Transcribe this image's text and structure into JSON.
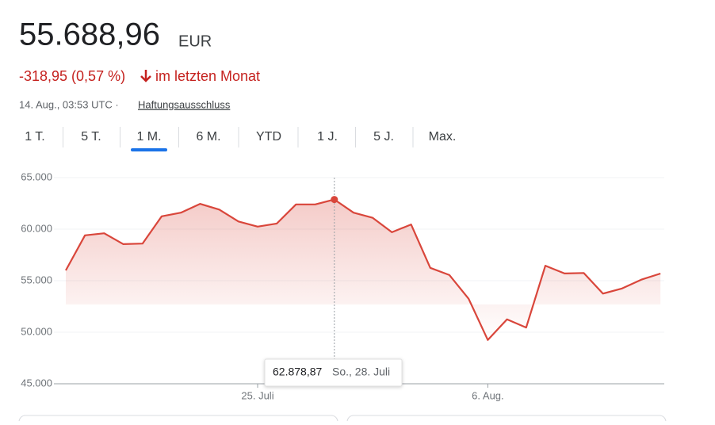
{
  "header": {
    "price": "55.688,96",
    "currency": "EUR",
    "change": "-318,95 (0,57 %)",
    "period": "im letzten Monat",
    "timestamp": "14. Aug., 03:53 UTC ·",
    "disclaimer": "Haftungsausschluss"
  },
  "tabs": [
    "1 T.",
    "5 T.",
    "1 M.",
    "6 M.",
    "YTD",
    "1 J.",
    "5 J.",
    "Max."
  ],
  "active_tab": "1 M.",
  "tooltip": {
    "date": "So., 28. Juli"
  },
  "chart_data": {
    "type": "line",
    "categories": [
      null,
      null,
      null,
      null,
      null,
      null,
      null,
      null,
      null,
      null,
      "25. Juli",
      null,
      null,
      null,
      null,
      null,
      null,
      null,
      null,
      null,
      null,
      null,
      "6. Aug.",
      null,
      null,
      null,
      null,
      null,
      null,
      null,
      null,
      null
    ],
    "values": [
      56000,
      59400,
      59600,
      58550,
      58600,
      61250,
      61600,
      62450,
      61900,
      60750,
      60250,
      60550,
      62400,
      62400,
      62878.87,
      61600,
      61100,
      59700,
      60450,
      56250,
      55550,
      53250,
      49250,
      51250,
      50450,
      56450,
      55700,
      55750,
      53750,
      54250,
      55100,
      55688.96
    ],
    "value_labels": [
      null,
      null,
      null,
      null,
      null,
      null,
      null,
      null,
      null,
      null,
      null,
      null,
      null,
      null,
      "62.878,87",
      null,
      null,
      null,
      null,
      null,
      null,
      null,
      null,
      null,
      null,
      null,
      null,
      null,
      null,
      null,
      null,
      null
    ],
    "color": "#d9463b",
    "ylim": [
      45000,
      65000
    ],
    "yticks": [
      {
        "value": 45000,
        "label": "45.000"
      },
      {
        "value": 50000,
        "label": "50.000"
      },
      {
        "value": 55000,
        "label": "55.000"
      },
      {
        "value": 60000,
        "label": "60.000"
      },
      {
        "value": 65000,
        "label": "65.000"
      }
    ],
    "grid": true
  }
}
